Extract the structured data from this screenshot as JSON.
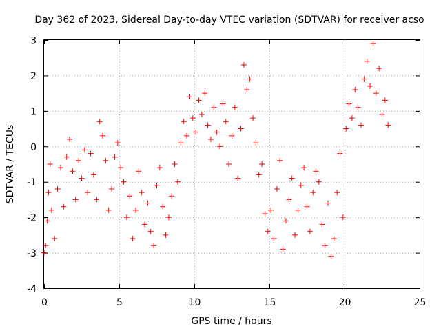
{
  "chart_data": {
    "type": "scatter",
    "title": "Day 362 of 2023, Sidereal Day-to-day VTEC variation (SDTVAR) for receiver acso",
    "xlabel": "GPS time / hours",
    "ylabel": "SDTVAR / TECUs",
    "xlim": [
      0,
      25
    ],
    "ylim": [
      -4,
      3
    ],
    "x_ticks": [
      0,
      5,
      10,
      15,
      20,
      25
    ],
    "y_ticks": [
      -4,
      -3,
      -2,
      -1,
      0,
      1,
      2,
      3
    ],
    "x_tick_labels": [
      "0",
      "5",
      "10",
      "15",
      "20",
      "25"
    ],
    "y_tick_labels": [
      "-4",
      "-3",
      "-2",
      "-1",
      "0",
      "1",
      "2",
      "3"
    ],
    "grid": true,
    "marker": "+",
    "series": [
      {
        "name": "SDTVAR",
        "color": "#ff0000",
        "x": [
          0.0,
          0.1,
          0.2,
          0.3,
          0.4,
          0.5,
          0.7,
          0.9,
          1.1,
          1.3,
          1.5,
          1.7,
          1.9,
          2.1,
          2.3,
          2.5,
          2.7,
          2.9,
          3.1,
          3.3,
          3.5,
          3.7,
          3.9,
          4.1,
          4.3,
          4.5,
          4.7,
          4.9,
          5.1,
          5.3,
          5.5,
          5.7,
          5.9,
          6.1,
          6.3,
          6.5,
          6.7,
          6.9,
          7.1,
          7.3,
          7.5,
          7.7,
          7.9,
          8.1,
          8.3,
          8.5,
          8.7,
          8.9,
          9.1,
          9.3,
          9.5,
          9.7,
          9.9,
          10.1,
          10.3,
          10.5,
          10.7,
          10.9,
          11.1,
          11.3,
          11.5,
          11.7,
          11.9,
          12.1,
          12.3,
          12.5,
          12.7,
          12.9,
          13.1,
          13.3,
          13.5,
          13.7,
          13.9,
          14.1,
          14.3,
          14.5,
          14.7,
          14.9,
          15.1,
          15.3,
          15.5,
          15.7,
          15.9,
          16.1,
          16.3,
          16.5,
          16.7,
          16.9,
          17.1,
          17.3,
          17.5,
          17.7,
          17.9,
          18.1,
          18.3,
          18.5,
          18.7,
          18.9,
          19.1,
          19.3,
          19.5,
          19.7,
          19.9,
          20.1,
          20.3,
          20.5,
          20.7,
          20.9,
          21.1,
          21.3,
          21.5,
          21.7,
          21.9,
          22.1,
          22.3,
          22.5,
          22.7,
          22.9
        ],
        "values": [
          -3.0,
          -2.8,
          -2.1,
          -1.3,
          -0.5,
          -1.8,
          -2.6,
          -1.2,
          -0.6,
          -1.7,
          -0.3,
          0.2,
          -0.7,
          -1.5,
          -0.4,
          -0.9,
          -0.1,
          -1.3,
          -0.2,
          -0.8,
          -1.5,
          0.7,
          0.3,
          -0.4,
          -1.8,
          -1.2,
          -0.3,
          0.1,
          -0.6,
          -1.0,
          -2.0,
          -1.4,
          -2.6,
          -1.8,
          -0.7,
          -1.3,
          -2.2,
          -1.6,
          -2.4,
          -2.8,
          -1.1,
          -0.6,
          -1.7,
          -2.5,
          -2.0,
          -1.4,
          -0.5,
          -1.0,
          0.1,
          0.7,
          0.3,
          1.4,
          0.8,
          0.4,
          1.3,
          0.9,
          1.5,
          0.6,
          0.2,
          1.1,
          0.4,
          0.0,
          1.2,
          0.7,
          -0.5,
          0.3,
          1.1,
          -0.9,
          0.5,
          2.3,
          1.6,
          1.9,
          0.8,
          0.1,
          -0.8,
          -0.5,
          -1.9,
          -2.4,
          -1.8,
          -2.6,
          -1.2,
          -0.4,
          -2.9,
          -2.1,
          -1.5,
          -0.9,
          -2.5,
          -1.8,
          -1.1,
          -0.6,
          -1.7,
          -2.4,
          -1.3,
          -0.7,
          -1.0,
          -2.2,
          -2.8,
          -1.6,
          -3.1,
          -2.6,
          -1.3,
          -0.2,
          -2.0,
          0.5,
          1.2,
          0.8,
          1.6,
          1.1,
          0.6,
          1.9,
          2.4,
          1.7,
          2.9,
          1.5,
          2.2,
          0.9,
          1.3,
          0.6
        ]
      }
    ]
  }
}
